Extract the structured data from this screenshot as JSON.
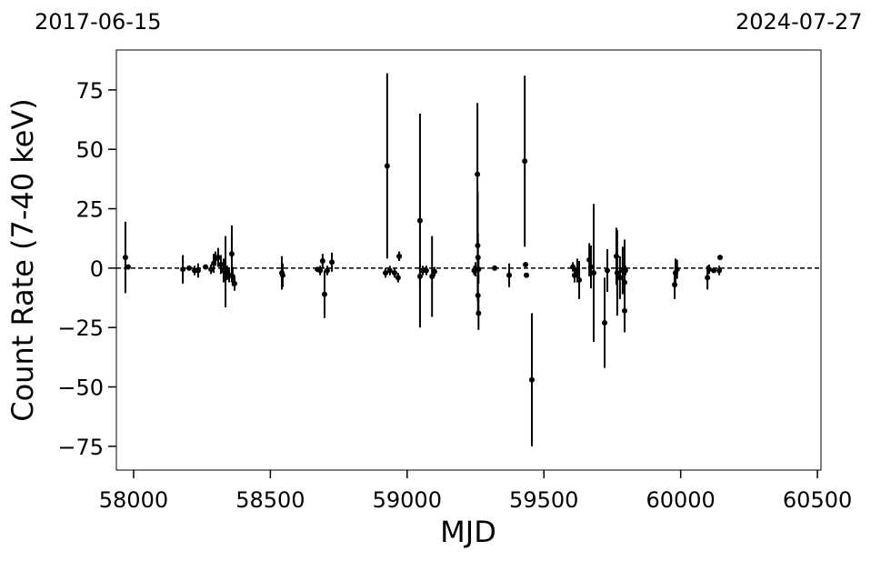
{
  "chart_data": {
    "type": "scatter",
    "xlabel": "MJD",
    "ylabel": "Count Rate (7-40 keV)",
    "top_left_label": "2017-06-15",
    "top_right_label": "2024-07-27",
    "xlim": [
      57937,
      60513
    ],
    "ylim": [
      -85,
      91.8
    ],
    "xticks": [
      58000,
      58500,
      59000,
      59500,
      60000,
      60500
    ],
    "yticks": [
      {
        "value": -75,
        "label": "−75"
      },
      {
        "value": -50,
        "label": "−50"
      },
      {
        "value": -25,
        "label": "−25"
      },
      0,
      25,
      50,
      75
    ],
    "hline": 0,
    "color": "#000000",
    "x": [
      57970,
      57980,
      58180,
      58203,
      58223,
      58236,
      58263,
      58283,
      58293,
      58299,
      58309,
      58319,
      58329,
      58336,
      58342,
      58349,
      58359,
      58362,
      58369,
      58542,
      58545,
      58672,
      58682,
      58691,
      58698,
      58708,
      58725,
      58921,
      58927,
      58937,
      58954,
      58967,
      58971,
      59047,
      59047,
      59057,
      59070,
      59091,
      59100,
      59250,
      59257,
      59258,
      59259,
      59259,
      59261,
      59245,
      59261,
      59320,
      59373,
      59430,
      59433,
      59436,
      59456,
      59606,
      59612,
      59622,
      59629,
      59666,
      59672,
      59682,
      59722,
      59732,
      59765,
      59768,
      59778,
      59788,
      59795,
      59795,
      59798,
      59978,
      59981,
      59987,
      60098,
      60104,
      60121,
      60141,
      60144
    ],
    "values": [
      4.5,
      0.5,
      -0.5,
      0,
      -1,
      -1,
      0.5,
      -0.5,
      2,
      4,
      4.5,
      1.5,
      -1,
      -1.5,
      -2,
      -3,
      6,
      -3.5,
      -6.5,
      -2,
      -3,
      -0.5,
      -1,
      3,
      -11,
      -1,
      2.5,
      -2,
      43,
      -1,
      -2,
      -4,
      5,
      20,
      -3.5,
      -1,
      -1,
      -3.5,
      -1.5,
      -0.5,
      39.5,
      9.5,
      4.5,
      -11.5,
      -19,
      -1,
      -0.5,
      0,
      -3,
      45,
      1.5,
      -3,
      -47,
      0.5,
      -3,
      -1,
      -5,
      3.5,
      0.5,
      -2,
      -23,
      -1,
      5,
      -2,
      -4,
      -1,
      -6,
      -18,
      -1,
      -7,
      -2,
      -0.5,
      -4,
      -0.5,
      -1,
      -1,
      4.5
    ],
    "errors": [
      15,
      0,
      6,
      1,
      2,
      3,
      1,
      2,
      4,
      3,
      4,
      4,
      5,
      15,
      3,
      3,
      12,
      4,
      3,
      7,
      5,
      1,
      2,
      3,
      10,
      2,
      4,
      2,
      39,
      2,
      2,
      2,
      2,
      45,
      5,
      2,
      2,
      17,
      2,
      3,
      30,
      23,
      10,
      8,
      7,
      2,
      6,
      1,
      5,
      36,
      1,
      1,
      28,
      2,
      3,
      5,
      8,
      7,
      9,
      29,
      19,
      9,
      12,
      18,
      9,
      10,
      18,
      9,
      2,
      6,
      6,
      4,
      5,
      2,
      1,
      2,
      1
    ]
  }
}
